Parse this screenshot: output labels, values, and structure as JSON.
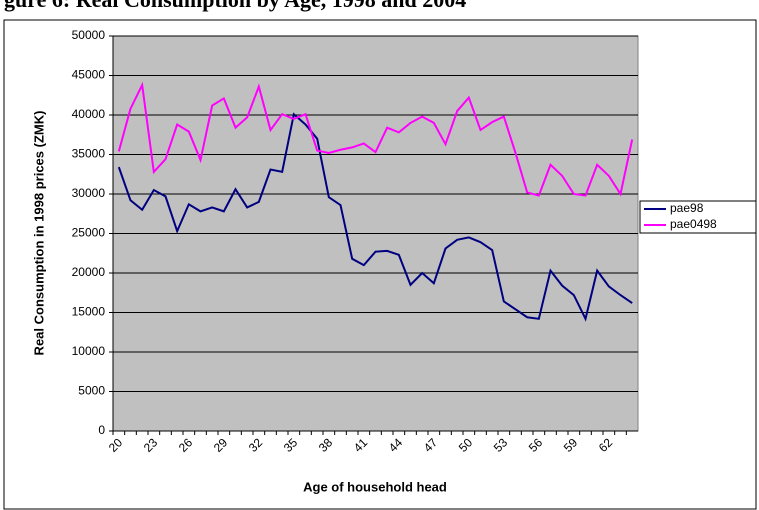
{
  "chart_data": {
    "type": "line",
    "title": "gure 6: Real Consumption by Age, 1998 and 2004",
    "x_label": "Age of household head",
    "y_label": "Real Consumption in 1998 prices (ZMK)",
    "categories": [
      "20",
      null,
      null,
      "23",
      null,
      null,
      "26",
      null,
      null,
      "29",
      null,
      null,
      "32",
      null,
      null,
      "35",
      null,
      null,
      "38",
      null,
      null,
      "41",
      null,
      null,
      "44",
      null,
      null,
      "47",
      null,
      null,
      "50",
      null,
      null,
      "53",
      null,
      null,
      "56",
      null,
      null,
      "59",
      null,
      null,
      "62",
      null,
      null
    ],
    "series": [
      {
        "name": "pae98",
        "color": "#000080",
        "values": [
          33400,
          29200,
          28000,
          30500,
          29700,
          25300,
          28700,
          27800,
          28300,
          27800,
          30600,
          28300,
          29000,
          33100,
          32800,
          40100,
          38800,
          37000,
          29600,
          28600,
          21800,
          21000,
          22700,
          22800,
          22300,
          18500,
          20000,
          18700,
          23100,
          24200,
          24500,
          23900,
          22900,
          16400,
          15400,
          14400,
          14200,
          20300,
          18400,
          17200,
          14200,
          20300,
          18300,
          17200,
          16200
        ]
      },
      {
        "name": "pae0498",
        "color": "#ff00ff",
        "values": [
          35400,
          40800,
          43800,
          32800,
          34400,
          38800,
          37900,
          34300,
          41200,
          42100,
          38400,
          39700,
          43600,
          38100,
          40100,
          39500,
          40100,
          35500,
          35200,
          35600,
          35900,
          36400,
          35300,
          38400,
          37800,
          39000,
          39800,
          39000,
          36300,
          40500,
          42200,
          38100,
          39100,
          39800,
          35200,
          30200,
          29800,
          33700,
          32300,
          30000,
          29800,
          33700,
          32300,
          30000,
          36900
        ]
      }
    ],
    "ylim": [
      0,
      50000
    ],
    "yticks": [
      0,
      5000,
      10000,
      15000,
      20000,
      25000,
      30000,
      35000,
      40000,
      45000,
      50000
    ],
    "grid": true,
    "legend": "right",
    "plot_background": "#c0c0c0"
  }
}
